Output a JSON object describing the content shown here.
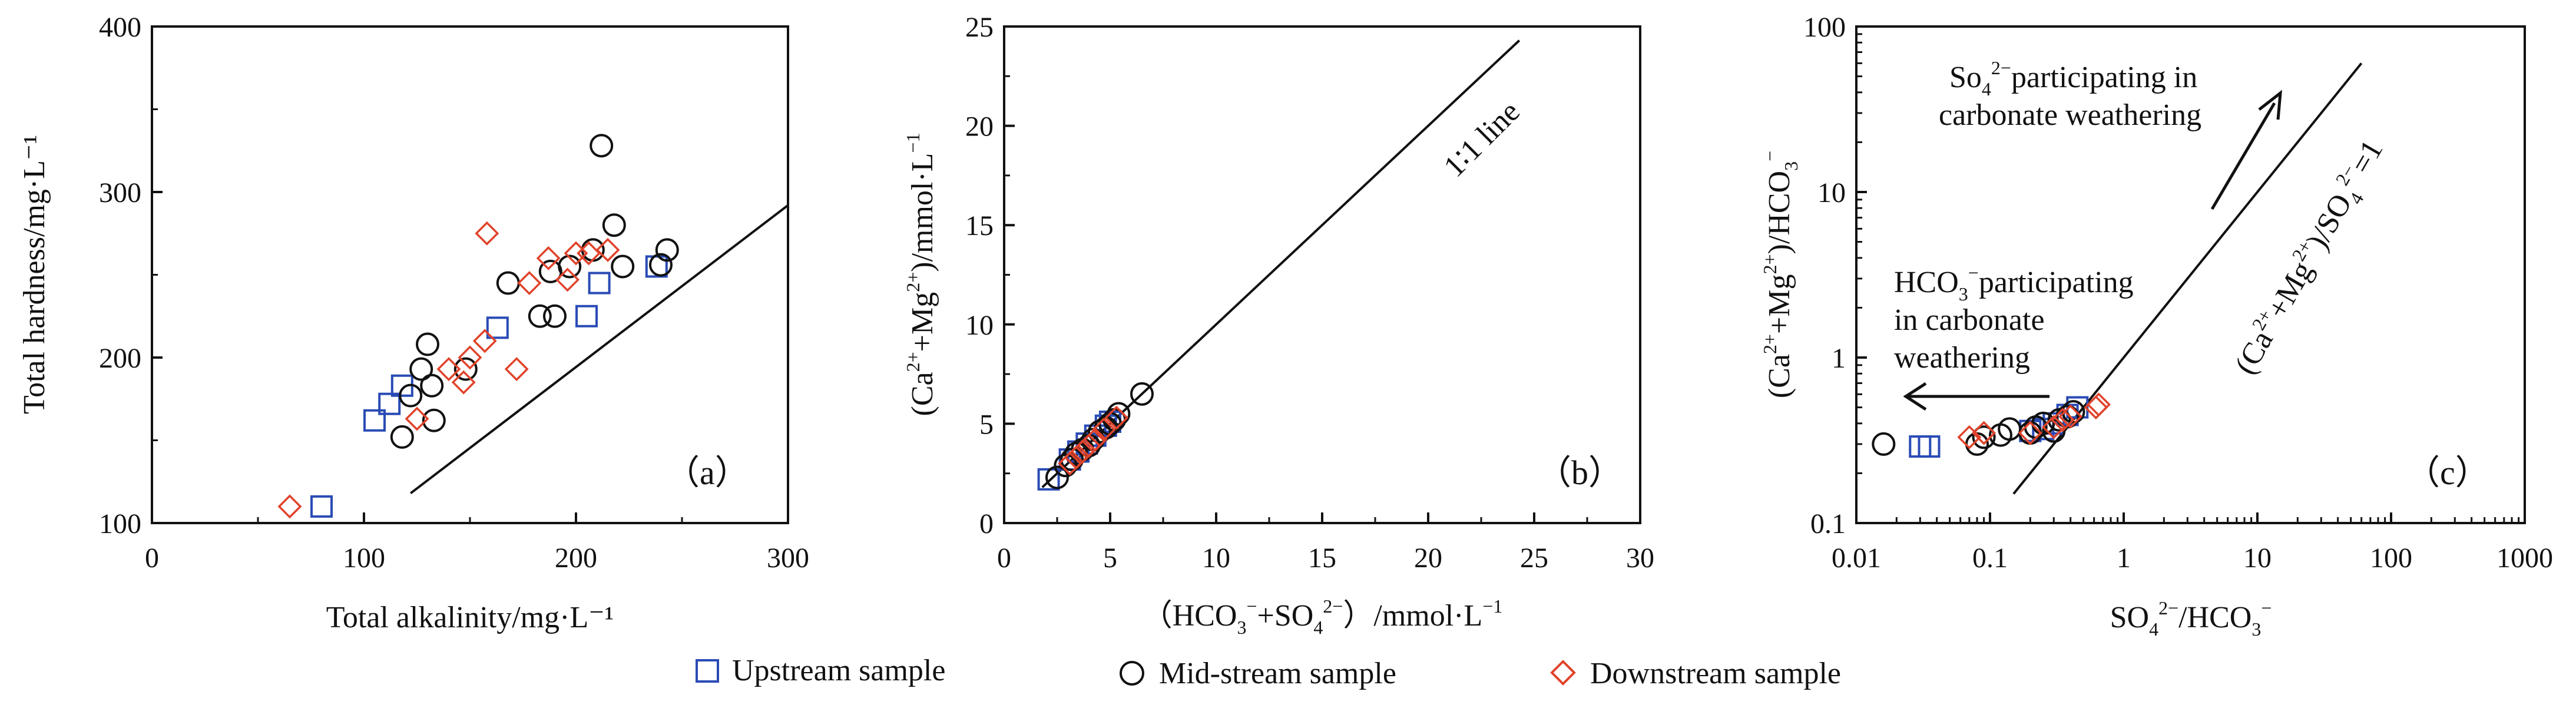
{
  "colors": {
    "upstream": "#2a4bb5",
    "midstream": "#111111",
    "downstream": "#e0432b",
    "axis": "#111111"
  },
  "legend": [
    {
      "key": "upstream",
      "label": "Upstream sample",
      "marker": "square"
    },
    {
      "key": "midstream",
      "label": "Mid-stream sample",
      "marker": "circle"
    },
    {
      "key": "downstream",
      "label": "Downstream sample",
      "marker": "diamond"
    }
  ],
  "chart_data": [
    {
      "panel": "a",
      "type": "scatter",
      "panel_label": "（a）",
      "xlabel": "Total alkalinity/mg·L⁻¹",
      "ylabel": "Total hardness/mg·L⁻¹",
      "xscale": "linear",
      "yscale": "linear",
      "xlim": [
        0,
        300
      ],
      "ylim": [
        100,
        400
      ],
      "xticks": [
        "0",
        "100",
        "200",
        "300"
      ],
      "yticks": [
        "100",
        "200",
        "300",
        "400"
      ],
      "xtick_values": [
        0,
        100,
        200,
        300
      ],
      "ytick_values": [
        100,
        200,
        300,
        400
      ],
      "reference_line": {
        "x": [
          122,
          300
        ],
        "y": [
          118,
          292
        ]
      },
      "series": [
        {
          "name": "Upstream sample",
          "key": "upstream",
          "marker": "square",
          "points": [
            [
              80,
              110
            ],
            [
              105,
              162
            ],
            [
              112,
              172
            ],
            [
              118,
              183
            ],
            [
              163,
              218
            ],
            [
              205,
              225
            ],
            [
              211,
              245
            ],
            [
              238,
              255
            ]
          ]
        },
        {
          "name": "Mid-stream sample",
          "key": "midstream",
          "marker": "circle",
          "points": [
            [
              118,
              152
            ],
            [
              122,
              177
            ],
            [
              127,
              193
            ],
            [
              130,
              208
            ],
            [
              132,
              183
            ],
            [
              133,
              162
            ],
            [
              148,
              193
            ],
            [
              168,
              245
            ],
            [
              183,
              225
            ],
            [
              188,
              252
            ],
            [
              190,
              225
            ],
            [
              197,
              255
            ],
            [
              208,
              265
            ],
            [
              212,
              328
            ],
            [
              218,
              280
            ],
            [
              222,
              255
            ],
            [
              240,
              256
            ],
            [
              243,
              265
            ]
          ]
        },
        {
          "name": "Downstream sample",
          "key": "downstream",
          "marker": "diamond",
          "points": [
            [
              65,
              110
            ],
            [
              125,
              163
            ],
            [
              140,
              193
            ],
            [
              147,
              185
            ],
            [
              150,
              200
            ],
            [
              157,
              210
            ],
            [
              158,
              275
            ],
            [
              172,
              193
            ],
            [
              178,
              245
            ],
            [
              187,
              260
            ],
            [
              196,
              247
            ],
            [
              200,
              263
            ],
            [
              206,
              263
            ],
            [
              215,
              265
            ]
          ]
        }
      ]
    },
    {
      "panel": "b",
      "type": "scatter",
      "panel_label": "（b）",
      "xlabel_parts": [
        "（HCO",
        "3",
        "−",
        "+SO",
        "4",
        "2−",
        "）/mmol·L",
        "−1"
      ],
      "ylabel_parts": [
        "(Ca",
        "2+",
        "+Mg",
        "2+",
        ")/mmol·L",
        "−1"
      ],
      "xscale": "linear",
      "yscale": "linear",
      "xlim": [
        0,
        30
      ],
      "ylim": [
        0,
        25
      ],
      "xticks": [
        "0",
        "5",
        "10",
        "15",
        "20",
        "25",
        "30"
      ],
      "yticks": [
        "0",
        "5",
        "10",
        "15",
        "20",
        "25"
      ],
      "xtick_values": [
        0,
        5,
        10,
        15,
        20,
        25,
        30
      ],
      "ytick_values": [
        0,
        5,
        10,
        15,
        20,
        25
      ],
      "reference_line": {
        "label": "1∶1 line",
        "x": [
          1.8,
          24.3
        ],
        "y": [
          1.8,
          24.3
        ]
      },
      "series": [
        {
          "name": "Upstream sample",
          "key": "upstream",
          "marker": "square",
          "points": [
            [
              2.1,
              2.2
            ],
            [
              3.1,
              3.2
            ],
            [
              3.5,
              3.6
            ],
            [
              3.9,
              4.0
            ],
            [
              4.3,
              4.4
            ],
            [
              4.8,
              4.9
            ],
            [
              5.0,
              5.1
            ]
          ]
        },
        {
          "name": "Mid-stream sample",
          "key": "midstream",
          "marker": "circle",
          "points": [
            [
              2.5,
              2.3
            ],
            [
              2.9,
              2.9
            ],
            [
              3.2,
              3.2
            ],
            [
              3.4,
              3.5
            ],
            [
              3.7,
              3.7
            ],
            [
              4.0,
              3.9
            ],
            [
              4.2,
              4.2
            ],
            [
              4.5,
              4.6
            ],
            [
              4.8,
              4.8
            ],
            [
              5.0,
              5.0
            ],
            [
              5.2,
              5.2
            ],
            [
              5.4,
              5.5
            ],
            [
              6.5,
              6.5
            ]
          ]
        },
        {
          "name": "Downstream sample",
          "key": "downstream",
          "marker": "diamond",
          "points": [
            [
              3.1,
              3.0
            ],
            [
              3.4,
              3.3
            ],
            [
              3.7,
              3.6
            ],
            [
              4.0,
              3.9
            ],
            [
              4.3,
              4.2
            ],
            [
              4.7,
              4.7
            ],
            [
              5.3,
              5.3
            ]
          ]
        }
      ]
    },
    {
      "panel": "c",
      "type": "scatter",
      "panel_label": "（c）",
      "xlabel_parts": [
        "SO",
        "4",
        "2−",
        "/HCO",
        "3",
        "−"
      ],
      "ylabel_parts": [
        "(Ca",
        "2+",
        "+Mg",
        "2+",
        ")/HCO",
        "3",
        "−"
      ],
      "xscale": "log",
      "yscale": "log",
      "xlim": [
        0.01,
        1000
      ],
      "ylim": [
        0.1,
        100
      ],
      "xticks": [
        "0.01",
        "0.1",
        "1",
        "10",
        "100",
        "1000"
      ],
      "yticks": [
        "0.1",
        "1",
        "10",
        "100"
      ],
      "xtick_values": [
        0.01,
        0.1,
        1,
        10,
        100,
        1000
      ],
      "ytick_values": [
        0.1,
        1,
        10,
        100
      ],
      "reference_line": {
        "label_parts": [
          "(Ca",
          "2+",
          "+Mg",
          "2+",
          ")/SO",
          "4",
          "2−",
          "=1"
        ],
        "x": [
          0.15,
          60
        ],
        "y": [
          0.15,
          60
        ]
      },
      "annotations": [
        {
          "lines": [
            [
              "So",
              "4",
              "2−",
              "participating in"
            ],
            [
              "carbonate weathering"
            ]
          ],
          "arrow": "up-right"
        },
        {
          "lines": [
            [
              "HCO",
              "3",
              "−",
              "participating"
            ],
            [
              "in carbonate"
            ],
            [
              "weathering"
            ]
          ],
          "arrow": "left"
        }
      ],
      "series": [
        {
          "name": "Upstream sample",
          "key": "upstream",
          "marker": "square",
          "points": [
            [
              0.03,
              0.29
            ],
            [
              0.035,
              0.29
            ],
            [
              0.2,
              0.36
            ],
            [
              0.25,
              0.37
            ],
            [
              0.3,
              0.4
            ],
            [
              0.38,
              0.45
            ],
            [
              0.45,
              0.5
            ]
          ]
        },
        {
          "name": "Mid-stream sample",
          "key": "midstream",
          "marker": "circle",
          "points": [
            [
              0.016,
              0.3
            ],
            [
              0.08,
              0.3
            ],
            [
              0.09,
              0.33
            ],
            [
              0.12,
              0.34
            ],
            [
              0.14,
              0.37
            ],
            [
              0.2,
              0.35
            ],
            [
              0.22,
              0.38
            ],
            [
              0.25,
              0.4
            ],
            [
              0.3,
              0.36
            ],
            [
              0.33,
              0.42
            ],
            [
              0.38,
              0.44
            ],
            [
              0.42,
              0.47
            ]
          ]
        },
        {
          "name": "Downstream sample",
          "key": "downstream",
          "marker": "diamond",
          "points": [
            [
              0.07,
              0.33
            ],
            [
              0.09,
              0.35
            ],
            [
              0.2,
              0.35
            ],
            [
              0.3,
              0.38
            ],
            [
              0.35,
              0.42
            ],
            [
              0.4,
              0.44
            ],
            [
              0.62,
              0.5
            ],
            [
              0.65,
              0.52
            ]
          ]
        }
      ]
    }
  ]
}
